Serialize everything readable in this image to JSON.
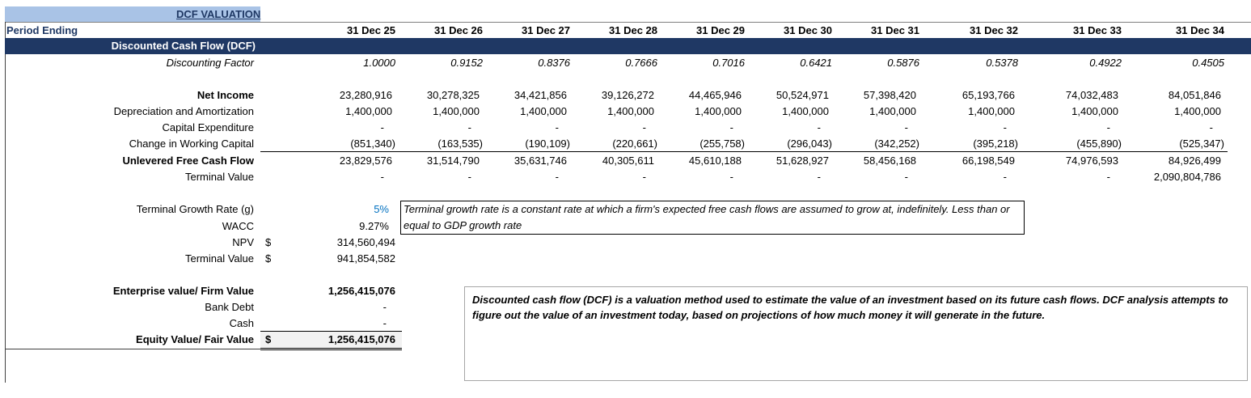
{
  "title": "DCF VALUATION",
  "period_label": "Period Ending",
  "section_title": "Discounted Cash Flow (DCF)",
  "periods": [
    "31 Dec 25",
    "31 Dec 26",
    "31 Dec 27",
    "31 Dec 28",
    "31 Dec 29",
    "31 Dec 30",
    "31 Dec 31",
    "31 Dec 32",
    "31 Dec 33",
    "31 Dec 34"
  ],
  "rows": [
    {
      "label": "Discounting Factor",
      "values": [
        "1.0000",
        "0.9152",
        "0.8376",
        "0.7666",
        "0.7016",
        "0.6421",
        "0.5876",
        "0.5378",
        "0.4922",
        "0.4505"
      ]
    },
    {
      "label": "Net Income",
      "values": [
        "23,280,916",
        "30,278,325",
        "34,421,856",
        "39,126,272",
        "44,465,946",
        "50,524,971",
        "57,398,420",
        "65,193,766",
        "74,032,483",
        "84,051,846"
      ]
    },
    {
      "label": "Depreciation and Amortization",
      "values": [
        "1,400,000",
        "1,400,000",
        "1,400,000",
        "1,400,000",
        "1,400,000",
        "1,400,000",
        "1,400,000",
        "1,400,000",
        "1,400,000",
        "1,400,000"
      ]
    },
    {
      "label": "Capital Expenditure",
      "values": [
        "-",
        "-",
        "-",
        "-",
        "-",
        "-",
        "-",
        "-",
        "-",
        "-"
      ]
    },
    {
      "label": "Change in Working Capital",
      "values": [
        "(851,340)",
        "(163,535)",
        "(190,109)",
        "(220,661)",
        "(255,758)",
        "(296,043)",
        "(342,252)",
        "(395,218)",
        "(455,890)",
        "(525,347)"
      ]
    },
    {
      "label": "Unlevered Free Cash Flow",
      "values": [
        "23,829,576",
        "31,514,790",
        "35,631,746",
        "40,305,611",
        "45,610,188",
        "51,628,927",
        "58,456,168",
        "66,198,549",
        "74,976,593",
        "84,926,499"
      ]
    },
    {
      "label": "Terminal Value",
      "values": [
        "-",
        "-",
        "-",
        "-",
        "-",
        "-",
        "-",
        "-",
        "-",
        "2,090,804,786"
      ]
    }
  ],
  "assumptions": {
    "growth_label": "Terminal Growth Rate (g)",
    "growth_value": "5%",
    "wacc_label": "WACC",
    "wacc_value": "9.27%",
    "npv_label": "NPV",
    "npv_currency": "$",
    "npv_value": "314,560,494",
    "tv_label": "Terminal Value",
    "tv_currency": "$",
    "tv_value": "941,854,582"
  },
  "growth_note": "Terminal growth rate is a constant rate at which a firm's expected free cash flows are assumed to grow at, indefinitely. Less than or equal to GDP growth rate",
  "valuation": {
    "ev_label": "Enterprise value/ Firm Value",
    "ev_value": "1,256,415,076",
    "debt_label": "Bank Debt",
    "debt_value": "-",
    "cash_label": "Cash",
    "cash_value": "-",
    "equity_label": "Equity Value/ Fair Value",
    "equity_currency": "$",
    "equity_value": "1,256,415,076"
  },
  "dcf_note": "Discounted cash flow (DCF) is a valuation method used to estimate the value of an investment based on its future cash flows. DCF analysis attempts to figure out the value of an investment today, based on projections of how much money it will generate in the future.",
  "colors": {
    "header_bar": "#1f3864",
    "title_fill": "#a9c3e6",
    "accent_blue": "#0070c0"
  }
}
